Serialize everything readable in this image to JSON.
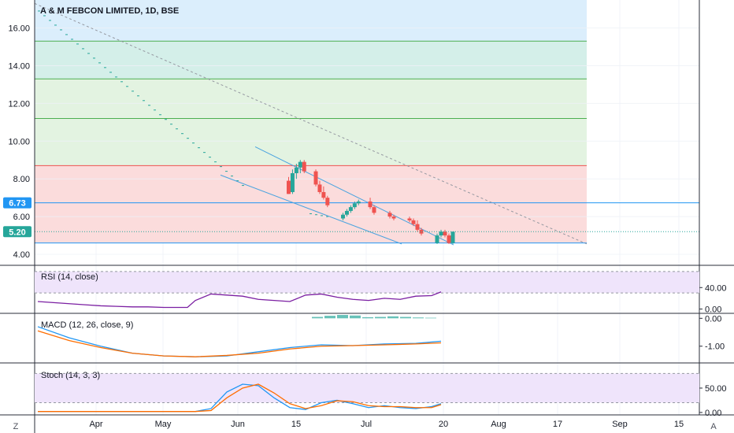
{
  "chart_data": [
    {
      "type": "candlestick",
      "title": "A & M FEBCON LIMITED, 1D, BSE",
      "y_ticks": [
        "16.00",
        "14.00",
        "12.00",
        "10.00",
        "8.00",
        "6.00",
        "4.00"
      ],
      "ylim": [
        3.5,
        17.4
      ],
      "x_ticks": [
        "Apr",
        "May",
        "Jun",
        "15",
        "Jul",
        "20",
        "Aug",
        "17",
        "Sep",
        "15"
      ],
      "price_labels": {
        "level_upper": "6.73",
        "last_price": "5.20"
      },
      "levels": [
        15.3,
        13.3,
        11.2,
        8.7,
        6.73,
        4.6
      ],
      "zone_colors": {
        "blue": "#dbeefc",
        "teal": "#d4efe9",
        "green": "#e3f3e1",
        "red": "#fbdcdc",
        "level_line": "#4caf50",
        "red_line": "#ef5350",
        "blue_line": "#2196f3"
      },
      "trend_channel": {
        "upper": [
          [
            0.0,
            9.7
          ],
          [
            1.0,
            4.5
          ]
        ],
        "lower": [
          [
            0.0,
            8.2
          ],
          [
            1.0,
            4.55
          ]
        ]
      },
      "candles": [
        {
          "d": "Jun 8",
          "o": 7.9,
          "h": 8.1,
          "l": 7.2,
          "c": 7.2
        },
        {
          "d": "Jun 9",
          "o": 7.3,
          "h": 8.5,
          "l": 7.2,
          "c": 8.3
        },
        {
          "d": "Jun 10",
          "o": 8.3,
          "h": 8.8,
          "l": 8.0,
          "c": 8.6
        },
        {
          "d": "Jun 11",
          "o": 8.6,
          "h": 9.0,
          "l": 8.3,
          "c": 8.9
        },
        {
          "d": "Jun 12",
          "o": 8.9,
          "h": 9.0,
          "l": 8.3,
          "c": 8.4
        },
        {
          "d": "Jun 15",
          "o": 8.4,
          "h": 8.5,
          "l": 7.6,
          "c": 7.7
        },
        {
          "d": "Jun 16",
          "o": 7.7,
          "h": 7.9,
          "l": 7.2,
          "c": 7.3
        },
        {
          "d": "Jun 17",
          "o": 7.3,
          "h": 7.6,
          "l": 6.9,
          "c": 7.0
        },
        {
          "d": "Jun 18",
          "o": 7.0,
          "h": 7.1,
          "l": 6.5,
          "c": 6.6
        },
        {
          "d": "Jun 22",
          "o": 5.9,
          "h": 6.2,
          "l": 5.8,
          "c": 6.1
        },
        {
          "d": "Jun 23",
          "o": 6.1,
          "h": 6.4,
          "l": 6.0,
          "c": 6.3
        },
        {
          "d": "Jun 24",
          "o": 6.3,
          "h": 6.6,
          "l": 6.2,
          "c": 6.5
        },
        {
          "d": "Jun 25",
          "o": 6.5,
          "h": 6.8,
          "l": 6.4,
          "c": 6.7
        },
        {
          "d": "Jun 26",
          "o": 6.7,
          "h": 6.9,
          "l": 6.6,
          "c": 6.8
        },
        {
          "d": "Jun 29",
          "o": 6.8,
          "h": 7.0,
          "l": 6.4,
          "c": 6.5
        },
        {
          "d": "Jun 30",
          "o": 6.5,
          "h": 6.6,
          "l": 6.1,
          "c": 6.2
        },
        {
          "d": "Jul 1",
          "o": 6.2,
          "h": 6.3,
          "l": 5.9,
          "c": 6.0
        },
        {
          "d": "Jul 2",
          "o": 6.0,
          "h": 6.1,
          "l": 5.8,
          "c": 5.9
        },
        {
          "d": "Jul 6",
          "o": 5.9,
          "h": 6.0,
          "l": 5.7,
          "c": 5.8
        },
        {
          "d": "Jul 7",
          "o": 5.8,
          "h": 5.9,
          "l": 5.5,
          "c": 5.6
        },
        {
          "d": "Jul 8",
          "o": 5.6,
          "h": 5.8,
          "l": 5.2,
          "c": 5.3
        },
        {
          "d": "Jul 9",
          "o": 5.3,
          "h": 5.4,
          "l": 5.0,
          "c": 5.1
        },
        {
          "d": "Jul 13",
          "o": 4.6,
          "h": 5.1,
          "l": 4.55,
          "c": 5.0
        },
        {
          "d": "Jul 14",
          "o": 5.0,
          "h": 5.3,
          "l": 4.9,
          "c": 5.2
        },
        {
          "d": "Jul 15",
          "o": 5.2,
          "h": 5.3,
          "l": 4.9,
          "c": 5.0
        },
        {
          "d": "Jul 16",
          "o": 5.0,
          "h": 5.1,
          "l": 4.55,
          "c": 4.6
        },
        {
          "d": "Jul 17",
          "o": 4.6,
          "h": 5.2,
          "l": 4.55,
          "c": 5.2
        }
      ]
    },
    {
      "type": "line",
      "title": "RSI (14, close)",
      "y_ticks": [
        "40.00",
        "0.00"
      ],
      "ylim": [
        -8,
        80
      ],
      "band": [
        30,
        70
      ],
      "x": [
        0,
        10,
        20,
        30,
        40,
        50,
        60,
        70,
        80,
        90,
        95,
        100,
        110,
        120,
        130,
        140,
        150,
        160,
        170,
        180,
        190,
        200,
        210,
        220,
        230,
        240,
        250,
        256
      ],
      "values": [
        14,
        12,
        10,
        8,
        6,
        5,
        4,
        4,
        3,
        3,
        3,
        16,
        28,
        26,
        24,
        18,
        16,
        14,
        26,
        28,
        22,
        18,
        16,
        20,
        18,
        24,
        25,
        32
      ],
      "color": "#7b1fa2"
    },
    {
      "type": "line",
      "title": "MACD (12, 26, close, 9)",
      "y_ticks": [
        "0.00",
        "-1.00"
      ],
      "ylim": [
        -1.6,
        0.15
      ],
      "x": [
        0,
        20,
        40,
        60,
        80,
        100,
        120,
        140,
        160,
        180,
        200,
        220,
        240,
        256
      ],
      "series": [
        {
          "values": [
            -0.3,
            -0.7,
            -1.0,
            -1.25,
            -1.35,
            -1.38,
            -1.35,
            -1.2,
            -1.05,
            -0.95,
            -0.98,
            -0.92,
            -0.9,
            -0.82
          ],
          "color": "#2196f3"
        },
        {
          "values": [
            -0.45,
            -0.8,
            -1.05,
            -1.25,
            -1.35,
            -1.38,
            -1.33,
            -1.25,
            -1.1,
            -1.0,
            -0.98,
            -0.95,
            -0.92,
            -0.88
          ],
          "color": "#ff6d00"
        }
      ],
      "histogram": [
        0,
        0,
        0,
        0,
        0,
        0,
        0.05,
        0.09,
        0.12,
        0.1,
        0.04,
        0.05,
        0.07,
        0.05,
        0.03,
        0.02
      ]
    },
    {
      "type": "line",
      "title": "Stoch (14, 3, 3)",
      "y_ticks": [
        "50.00",
        "0.00"
      ],
      "ylim": [
        -5,
        100
      ],
      "band": [
        20,
        80
      ],
      "x": [
        0,
        20,
        40,
        60,
        80,
        100,
        110,
        120,
        130,
        140,
        150,
        160,
        170,
        180,
        190,
        200,
        210,
        220,
        230,
        240,
        250,
        256
      ],
      "series": [
        {
          "values": [
            2,
            2,
            2,
            2,
            2,
            2,
            8,
            42,
            58,
            55,
            30,
            10,
            6,
            20,
            25,
            18,
            10,
            14,
            10,
            8,
            12,
            18
          ],
          "color": "#2196f3"
        },
        {
          "values": [
            2,
            2,
            2,
            2,
            2,
            2,
            4,
            30,
            50,
            58,
            40,
            18,
            8,
            14,
            24,
            22,
            14,
            12,
            12,
            10,
            10,
            16
          ],
          "color": "#ff6d00"
        }
      ]
    }
  ],
  "axis_corners": {
    "left": "Z",
    "right": "A"
  }
}
